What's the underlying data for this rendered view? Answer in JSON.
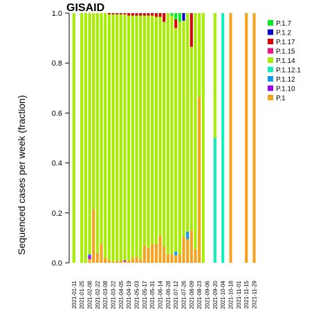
{
  "chart_data": {
    "type": "bar",
    "stacked": true,
    "title": "GISAID",
    "xlabel": "",
    "ylabel": "Sequenced cases per week (fraction)",
    "ylim": [
      0,
      1
    ],
    "yticks": [
      "0.0",
      "0.2",
      "0.4",
      "0.6",
      "0.8",
      "1.0"
    ],
    "grid": false,
    "legend_position": "right",
    "xtick_labels": [
      "2021-01-11",
      "2021-01-25",
      "2021-02-08",
      "2021-02-22",
      "2021-03-08",
      "2021-03-22",
      "2021-04-05",
      "2021-04-19",
      "2021-05-03",
      "2021-05-17",
      "2021-05-31",
      "2021-06-14",
      "2021-06-28",
      "2021-07-12",
      "2021-07-26",
      "2021-08-09",
      "2021-08-23",
      "2021-09-06",
      "2021-09-20",
      "2021-10-04",
      "2021-10-18",
      "2021-11-01",
      "2021-11-15",
      "2021-11-29"
    ],
    "legend": [
      {
        "name": "P.1.7",
        "color": "#00ee22"
      },
      {
        "name": "P.1.2",
        "color": "#0000cc"
      },
      {
        "name": "P.1.17",
        "color": "#dd0000"
      },
      {
        "name": "P.1.15",
        "color": "#ee1188"
      },
      {
        "name": "P.1.14",
        "color": "#a6ee00"
      },
      {
        "name": "P.1.12.1",
        "color": "#11eebb"
      },
      {
        "name": "P.1.12",
        "color": "#1199ee"
      },
      {
        "name": "P.1.10",
        "color": "#9900ee"
      },
      {
        "name": "P.1",
        "color": "#f5a21e"
      }
    ],
    "stack_order": [
      "P.1",
      "P.1.10",
      "P.1.12",
      "P.1.12.1",
      "P.1.14",
      "P.1.15",
      "P.1.17",
      "P.1.2",
      "P.1.7"
    ],
    "week_index_start": "2021-01-11",
    "bars": [
      {
        "week": 0,
        "P.1.14": 1.0
      },
      {
        "week": 2,
        "P.1.14": 1.0
      },
      {
        "week": 3,
        "P.1.14": 1.0
      },
      {
        "week": 4,
        "P.1": 0.015,
        "P.1.10": 0.015,
        "P.1.12": 0.005,
        "P.1.14": 0.965
      },
      {
        "week": 5,
        "P.1": 0.215,
        "P.1.14": 0.785
      },
      {
        "week": 6,
        "P.1": 0.04,
        "P.1.14": 0.96
      },
      {
        "week": 7,
        "P.1": 0.075,
        "P.1.14": 0.925
      },
      {
        "week": 8,
        "P.1": 0.02,
        "P.1.14": 0.98
      },
      {
        "week": 9,
        "P.1": 0.01,
        "P.1.14": 0.985,
        "P.1.17": 0.005
      },
      {
        "week": 10,
        "P.1": 0.005,
        "P.1.14": 0.99,
        "P.1.17": 0.005
      },
      {
        "week": 11,
        "P.1": 0.008,
        "P.1.14": 0.987,
        "P.1.17": 0.005
      },
      {
        "week": 12,
        "P.1": 0.01,
        "P.1.14": 0.985,
        "P.1.17": 0.005
      },
      {
        "week": 13,
        "P.1": 0.005,
        "P.1.10": 0.005,
        "P.1.14": 0.985,
        "P.1.17": 0.005
      },
      {
        "week": 14,
        "P.1": 0.01,
        "P.1.14": 0.98,
        "P.1.17": 0.01
      },
      {
        "week": 15,
        "P.1": 0.02,
        "P.1.14": 0.97,
        "P.1.17": 0.01
      },
      {
        "week": 16,
        "P.1": 0.025,
        "P.1.14": 0.965,
        "P.1.17": 0.01
      },
      {
        "week": 17,
        "P.1": 0.015,
        "P.1.14": 0.975,
        "P.1.17": 0.01
      },
      {
        "week": 18,
        "P.1": 0.07,
        "P.1.14": 0.92,
        "P.1.17": 0.01
      },
      {
        "week": 19,
        "P.1": 0.06,
        "P.1.14": 0.93,
        "P.1.17": 0.01
      },
      {
        "week": 20,
        "P.1": 0.075,
        "P.1.14": 0.915,
        "P.1.17": 0.01
      },
      {
        "week": 21,
        "P.1": 0.075,
        "P.1.14": 0.91,
        "P.1.17": 0.015
      },
      {
        "week": 22,
        "P.1": 0.11,
        "P.1.14": 0.875,
        "P.1.17": 0.015
      },
      {
        "week": 23,
        "P.1": 0.065,
        "P.1.14": 0.9,
        "P.1.17": 0.035
      },
      {
        "week": 24,
        "P.1": 0.035,
        "P.1.14": 0.965
      },
      {
        "week": 25,
        "P.1": 0.035,
        "P.1.14": 0.955,
        "P.1.7": 0.01
      },
      {
        "week": 26,
        "P.1": 0.03,
        "P.1.12": 0.015,
        "P.1.14": 0.895,
        "P.1.17": 0.035,
        "P.1.7": 0.025
      },
      {
        "week": 27,
        "P.1": 0.035,
        "P.1.14": 0.93,
        "P.1.7": 0.035
      },
      {
        "week": 28,
        "P.1": 0.105,
        "P.1.14": 0.865,
        "P.1.2": 0.03
      },
      {
        "week": 29,
        "P.1": 0.095,
        "P.1.12": 0.03,
        "P.1.14": 0.875
      },
      {
        "week": 30,
        "P.1": 0.13,
        "P.1.14": 0.735,
        "P.1.17": 0.135
      },
      {
        "week": 31,
        "P.1": 0.055,
        "P.1.14": 0.945
      },
      {
        "week": 32,
        "P.1": 0.665,
        "P.1.14": 0.335
      },
      {
        "week": 33,
        "P.1.14": 1.0
      },
      {
        "week": 36,
        "P.1.12.1": 0.5,
        "P.1.14": 0.5
      },
      {
        "week": 38,
        "P.1.12.1": 1.0
      },
      {
        "week": 40,
        "P.1": 1.0
      },
      {
        "week": 44,
        "P.1": 1.0
      },
      {
        "week": 46,
        "P.1": 1.0
      }
    ]
  }
}
